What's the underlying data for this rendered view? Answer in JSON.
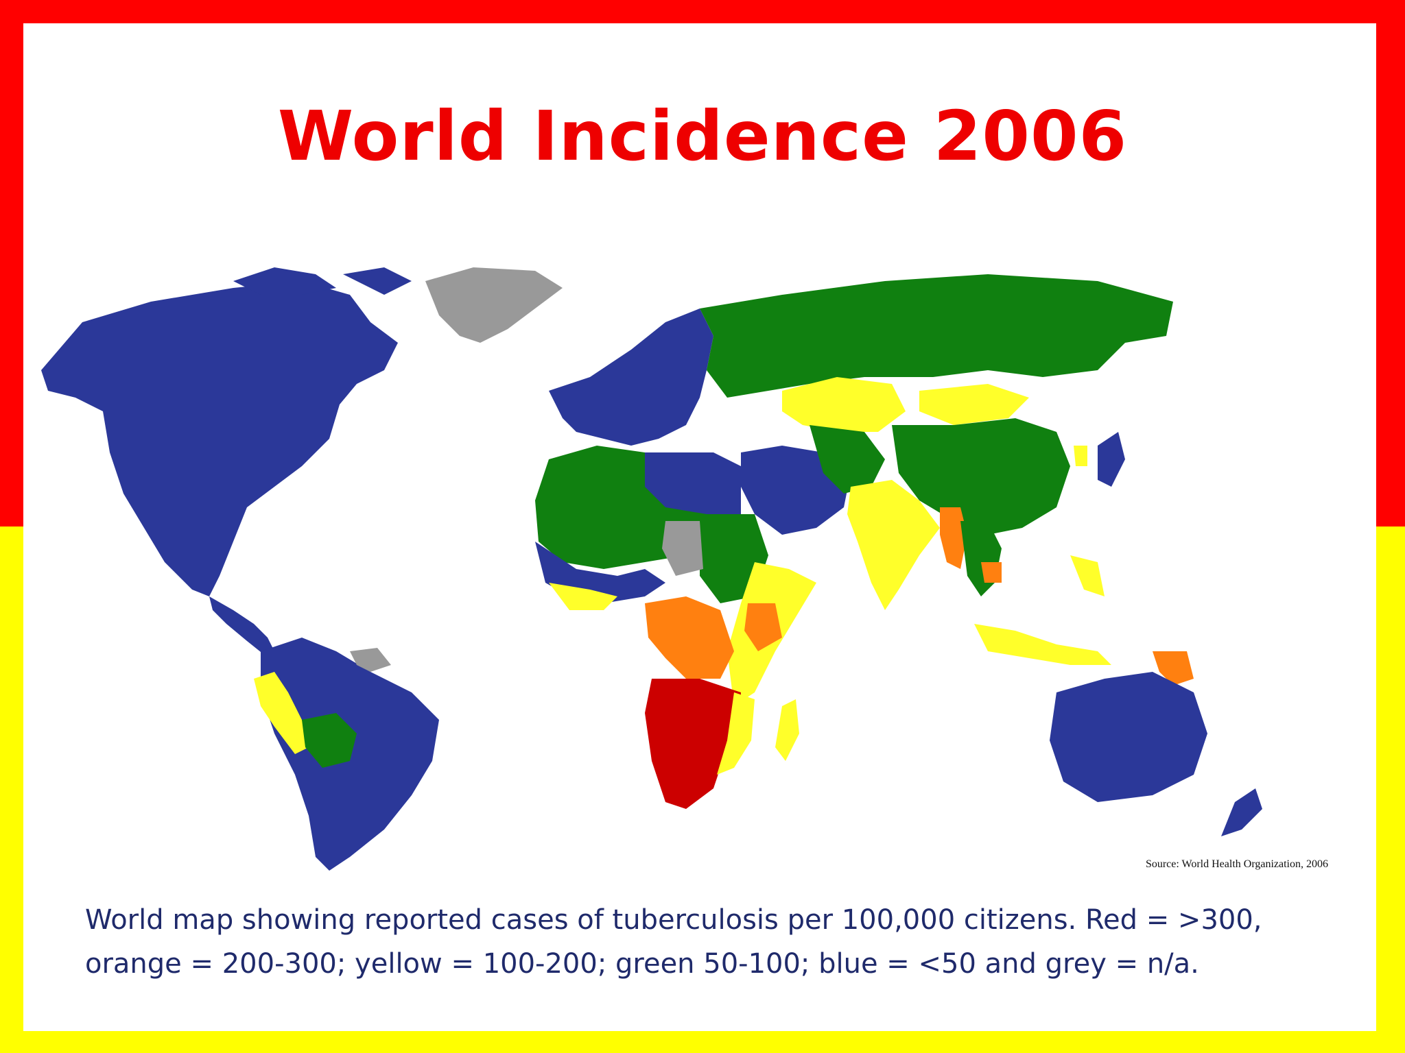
{
  "slide": {
    "title": "World Incidence 2006",
    "source": "Source: World Health Organization, 2006",
    "caption": "World map showing reported cases of tuberculosis per 100,000 citizens. Red = >300, orange = 200-300; yellow = 100-200; green 50-100; blue = <50 and grey = n/a."
  },
  "map": {
    "type": "choropleth",
    "subject": "tuberculosis incidence per 100,000",
    "categories": [
      {
        "key": "red",
        "range": ">300",
        "color": "#cc0000"
      },
      {
        "key": "orange",
        "range": "200-300",
        "color": "#ff8010"
      },
      {
        "key": "yellow",
        "range": "100-200",
        "color": "#ffff2a"
      },
      {
        "key": "green",
        "range": "50-100",
        "color": "#108010"
      },
      {
        "key": "blue",
        "range": "<50",
        "color": "#2b3899"
      },
      {
        "key": "grey",
        "range": "n/a",
        "color": "#999999"
      }
    ],
    "colors": {
      "frame_top": "#ff0000",
      "frame_bottom": "#ffff00",
      "title": "#ee0000",
      "caption": "#1f2a6b",
      "ocean": "#ffffff"
    }
  }
}
